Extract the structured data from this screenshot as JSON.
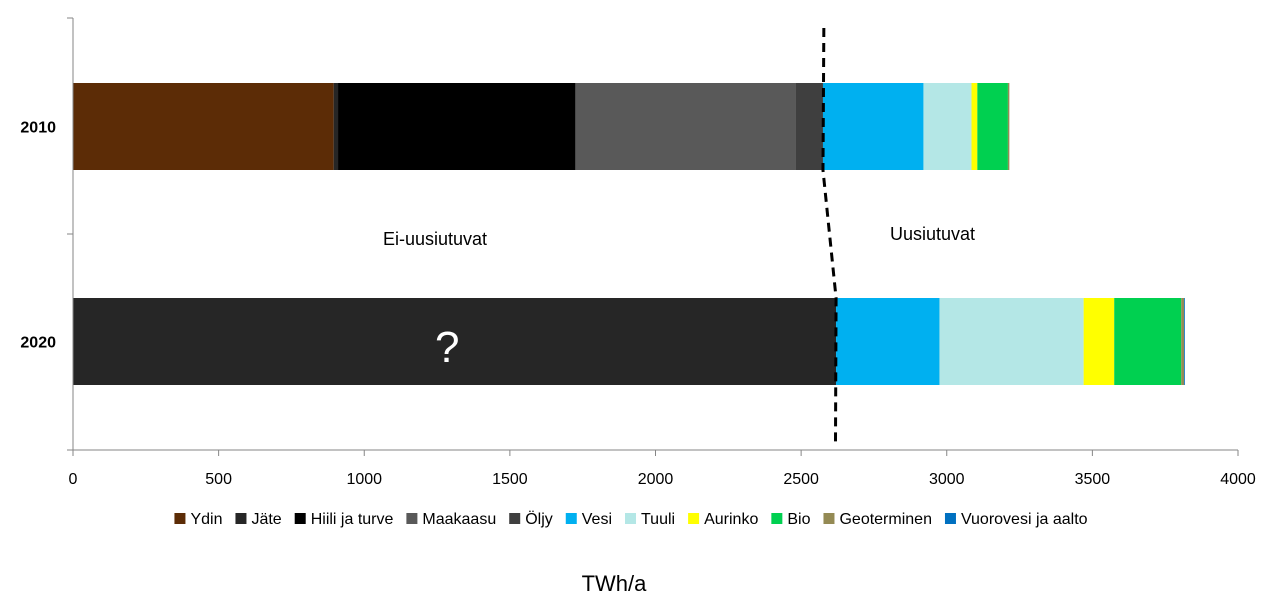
{
  "chart_data": {
    "type": "bar",
    "orientation": "horizontal",
    "stacked": true,
    "categories": [
      "2010",
      "2020"
    ],
    "xlim": [
      0,
      4000
    ],
    "xticks": [
      0,
      500,
      1000,
      1500,
      2000,
      2500,
      3000,
      3500,
      4000
    ],
    "xlabel": "TWh/a",
    "grid": false,
    "legend_position": "bottom",
    "series": [
      {
        "name": "Ydin",
        "color": "#5c2c06",
        "values": [
          895,
          0
        ]
      },
      {
        "name": "Jäte",
        "color": "#262626",
        "values": [
          15,
          2620
        ]
      },
      {
        "name": "Hiili ja turve",
        "color": "#000000",
        "values": [
          815,
          0
        ]
      },
      {
        "name": "Maakaasu",
        "color": "#595959",
        "values": [
          755,
          0
        ]
      },
      {
        "name": "Öljy",
        "color": "#3f3f3f",
        "values": [
          95,
          0
        ]
      },
      {
        "name": "Vesi",
        "color": "#00b0f0",
        "values": [
          345,
          355
        ]
      },
      {
        "name": "Tuuli",
        "color": "#b4e7e6",
        "values": [
          165,
          495
        ]
      },
      {
        "name": "Aurinko",
        "color": "#ffff00",
        "values": [
          20,
          105
        ]
      },
      {
        "name": "Bio",
        "color": "#00d050",
        "values": [
          105,
          230
        ]
      },
      {
        "name": "Geoterminen",
        "color": "#948a54",
        "values": [
          5,
          10
        ]
      },
      {
        "name": "Vuorovesi ja aalto",
        "color": "#0070c0",
        "values": [
          0,
          1
        ]
      }
    ],
    "annotations": {
      "non_renewable": "Ei-uusiutuvat",
      "renewable": "Uusiutuvat",
      "unknown": "?"
    },
    "divider": {
      "style": "dashed",
      "x_2010": 2575,
      "x_2020": 2620
    }
  }
}
